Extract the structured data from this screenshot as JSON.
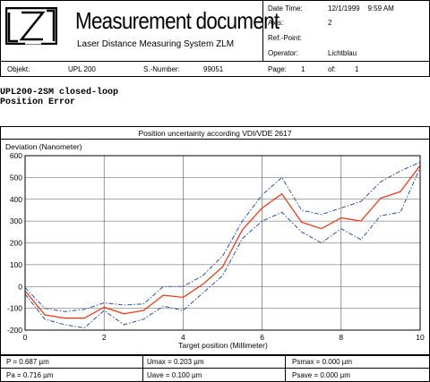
{
  "header": {
    "doc_title": "Measurement document",
    "doc_subtitle": "Laser Distance Measuring System ZLM",
    "fields": [
      {
        "label": "Date Time:",
        "value": "12/1/1999    9:59 AM"
      },
      {
        "label": "Axis:",
        "value": "2"
      },
      {
        "label": "Ref.-Point:",
        "value": ""
      },
      {
        "label": "Operator:",
        "value": "Lichtblau"
      }
    ],
    "objekt_label": "Objekt:",
    "objekt_value": "UPL 200",
    "snumber_label": "S.-Number:",
    "snumber_value": "99051",
    "page_label": "Page:",
    "page_value": "1",
    "of_label": "of:",
    "of_value": "1"
  },
  "test": {
    "line1": "UPL200-2SM closed-loop",
    "line2": "Position Error"
  },
  "chart_data": {
    "type": "line",
    "title": "Position uncertainty according VDI/VDE 2617",
    "ylabel": "Deviation (Nanometer)",
    "xlabel": "Target position (Millimeter)",
    "xlim": [
      0,
      10
    ],
    "ylim": [
      -200,
      600
    ],
    "xticks": [
      "0",
      "2",
      "4",
      "6",
      "8",
      "10"
    ],
    "yticks": [
      "600",
      "500",
      "400",
      "300",
      "200",
      "100",
      "0",
      "-100",
      "-200"
    ],
    "grid": true,
    "series_colors": {
      "mean": "#ff2a00",
      "bounds": "#2b4fa8"
    },
    "x": [
      0,
      0.5,
      1,
      1.5,
      2,
      2.5,
      3,
      3.5,
      4,
      4.5,
      5,
      5.5,
      6,
      6.5,
      7,
      7.5,
      8,
      8.5,
      9,
      9.5,
      10
    ],
    "series": [
      {
        "values": [
          -20,
          -130,
          -145,
          -145,
          -95,
          -125,
          -110,
          -40,
          -50,
          10,
          90,
          260,
          360,
          425,
          295,
          265,
          315,
          300,
          405,
          435,
          555
        ]
      },
      {
        "values": [
          -5,
          -100,
          -115,
          -105,
          -75,
          -85,
          -80,
          0,
          0,
          50,
          140,
          300,
          420,
          500,
          350,
          330,
          360,
          390,
          480,
          530,
          570
        ]
      },
      {
        "values": [
          -35,
          -150,
          -175,
          -190,
          -110,
          -175,
          -150,
          -90,
          -110,
          -30,
          50,
          220,
          300,
          340,
          250,
          200,
          265,
          215,
          325,
          340,
          545
        ]
      }
    ]
  },
  "footer": {
    "cells": [
      {
        "label": "P = 0.687 µm"
      },
      {
        "label": "Umax = 0.203 µm"
      },
      {
        "label": "Psmax = 0.000 µm"
      },
      {
        "label": "Pa = 0.716 µm"
      },
      {
        "label": "Uave = 0.100 µm"
      },
      {
        "label": "Psave = 0.000 µm"
      }
    ]
  }
}
